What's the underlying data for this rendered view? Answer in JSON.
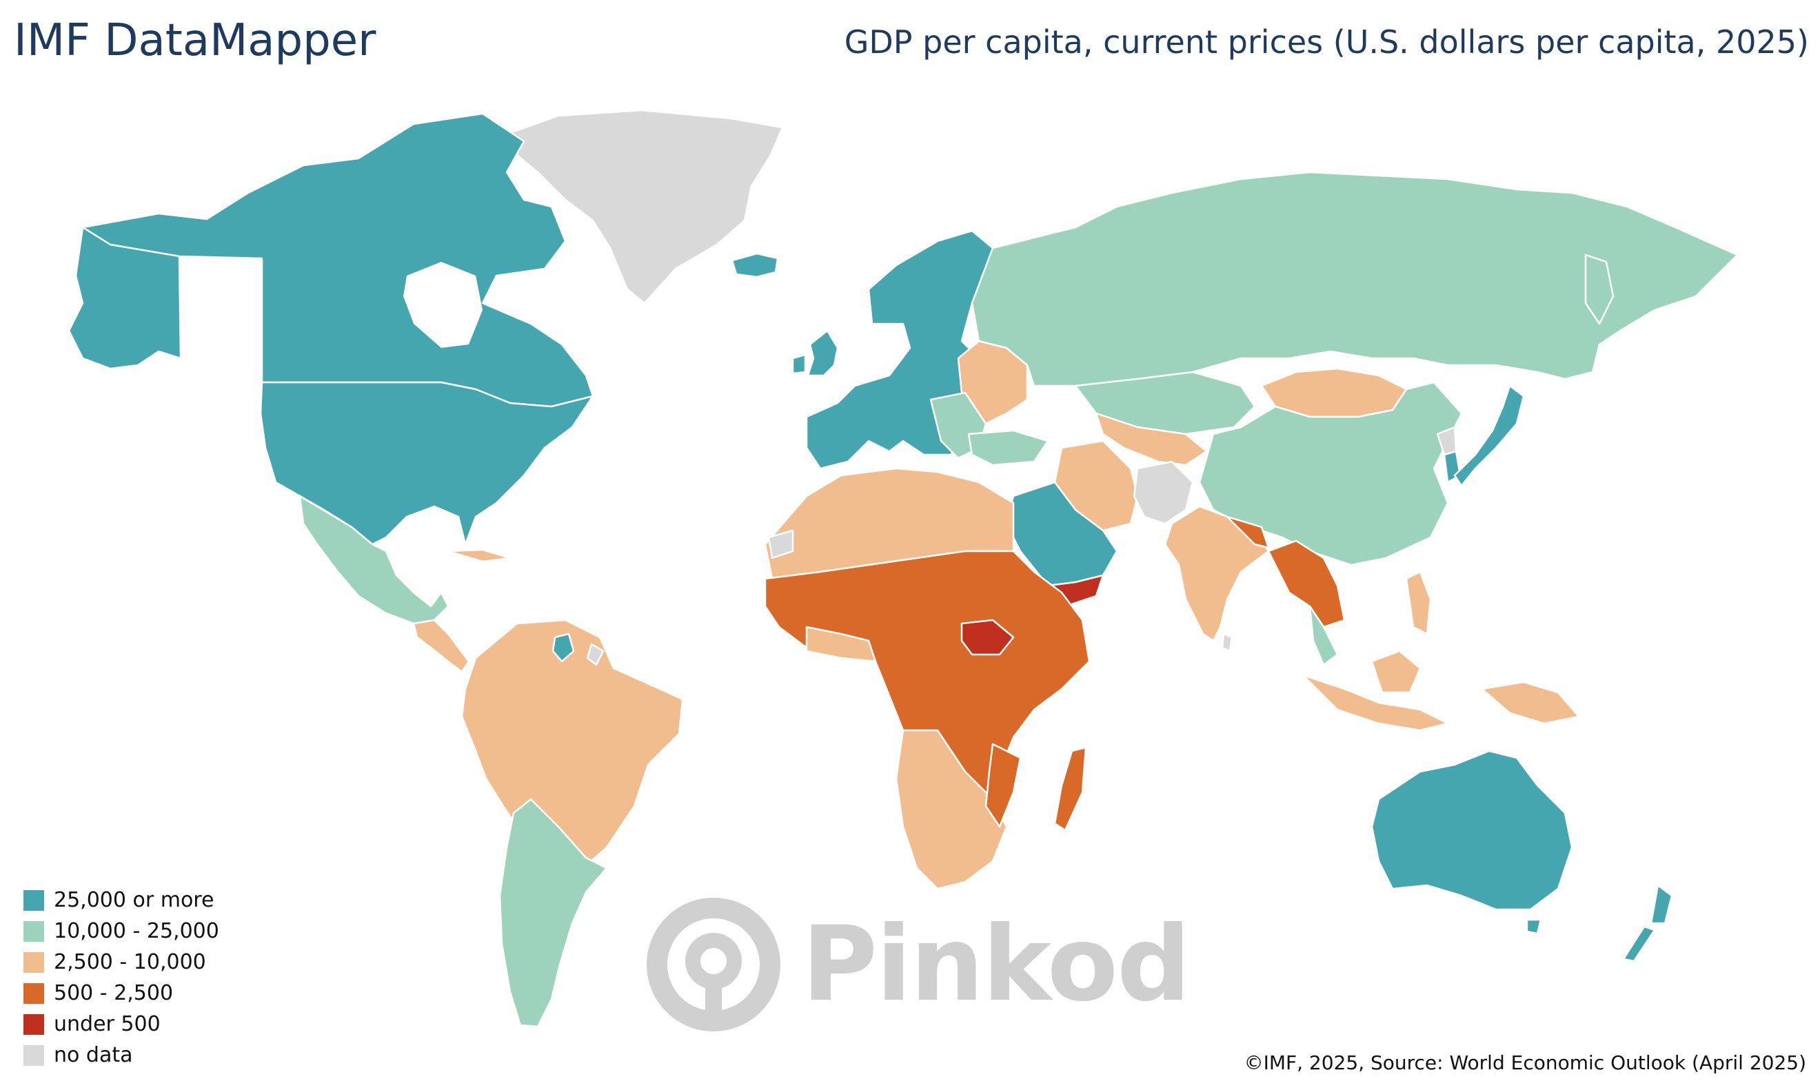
{
  "header": {
    "brand": "IMF DataMapper",
    "indicator": "GDP per capita, current prices (U.S. dollars per capita, 2025)"
  },
  "colors": {
    "c25k": "#46a6b0",
    "c10k": "#9dd3bd",
    "c2500": "#f2bd8e",
    "c500": "#d96928",
    "u500": "#c0301f",
    "nodata": "#d9d9d9",
    "border": "#ffffff"
  },
  "legend": {
    "items": [
      {
        "label": "25,000 or more",
        "color": "#46a6b0"
      },
      {
        "label": "10,000 - 25,000",
        "color": "#9dd3bd"
      },
      {
        "label": "2,500 - 10,000",
        "color": "#f2bd8e"
      },
      {
        "label": "500 - 2,500",
        "color": "#d96928"
      },
      {
        "label": "under 500",
        "color": "#c0301f"
      },
      {
        "label": "no data",
        "color": "#d9d9d9"
      }
    ]
  },
  "footer": {
    "credit": "©IMF, 2025, Source: World Economic Outlook (April 2025)"
  },
  "watermark": {
    "text": "Pinkod"
  }
}
